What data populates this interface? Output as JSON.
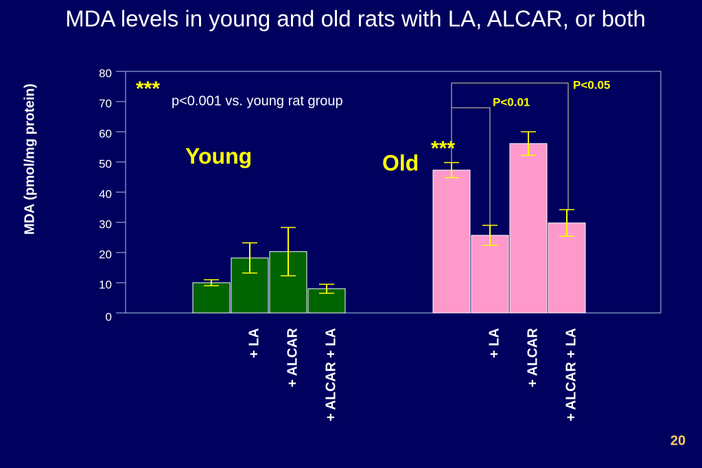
{
  "chart_data": {
    "type": "bar",
    "title": "MDA levels in young and old rats with LA, ALCAR, or both",
    "ylabel": "MDA (pmol/mg protein)",
    "categories": [
      null,
      "+ LA",
      "+ ALCAR",
      "+ ALCAR + LA"
    ],
    "series": [
      {
        "name": "Young",
        "color": "#006400",
        "values": [
          10,
          18.2,
          20.3,
          8
        ],
        "errors": [
          1,
          5,
          8,
          1.5
        ]
      },
      {
        "name": "Old",
        "color": "#ff99cc",
        "values": [
          47.3,
          25.7,
          56.1,
          29.8
        ],
        "errors": [
          2.5,
          3.3,
          3.9,
          4.4
        ]
      }
    ],
    "ylim": [
      0,
      80
    ],
    "yticks": [
      0,
      10,
      20,
      30,
      40,
      50,
      60,
      70,
      80
    ],
    "error_color": "#ffff00",
    "annotations": {
      "significance_marker": "***",
      "significance_note": "p<0.001 vs. young rat group",
      "old_marker": "***",
      "p_old_la": "P<0.01",
      "p_old_alcar_la": "P<0.05"
    },
    "page_number": "20"
  }
}
